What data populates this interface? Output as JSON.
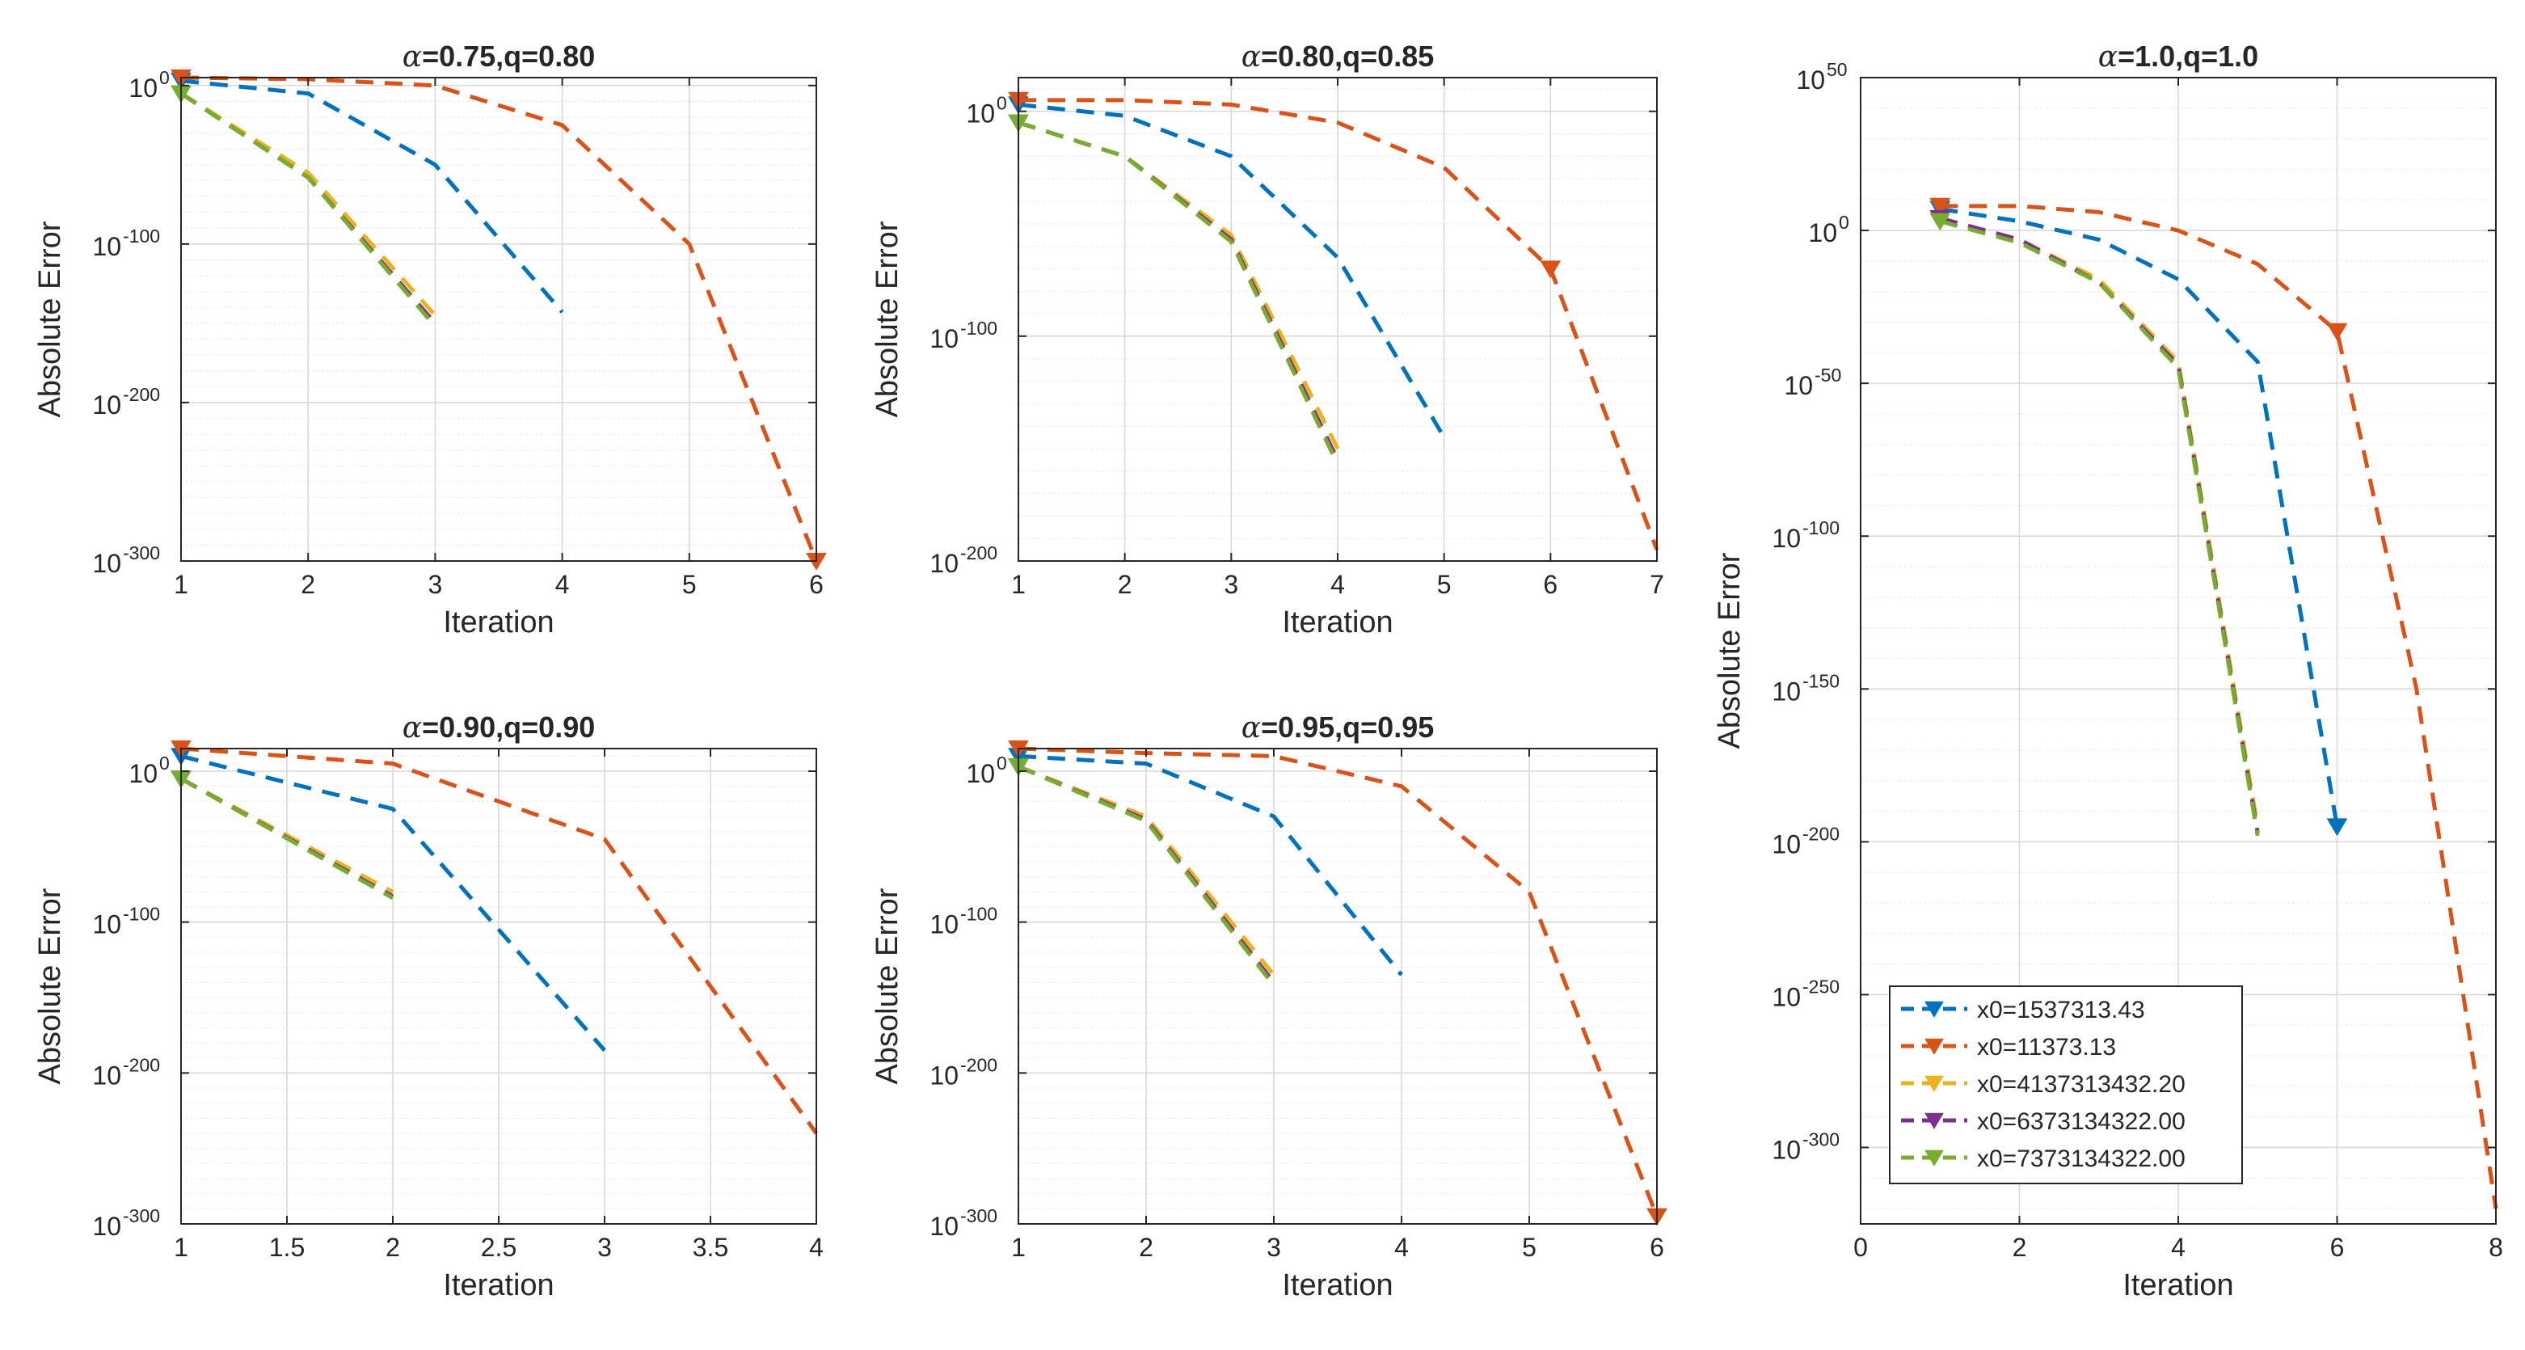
{
  "colors": {
    "s1": "#0072BD",
    "s2": "#D95319",
    "s3": "#EDB120",
    "s4": "#7E2F8E",
    "s5": "#77AC30"
  },
  "legend": {
    "placement": "bottom-left",
    "panel": 5,
    "entries": [
      {
        "key": "s1",
        "label": "x0=1537313.43"
      },
      {
        "key": "s2",
        "label": "x0=11373.13"
      },
      {
        "key": "s3",
        "label": "x0=4137313432.20"
      },
      {
        "key": "s4",
        "label": "x0=6373134322.00"
      },
      {
        "key": "s5",
        "label": "x0=7373134322.00"
      }
    ]
  },
  "chart_data": [
    {
      "type": "line",
      "title_prefix": "α",
      "title_rest": "=0.75,q=0.80",
      "xlabel": "Iteration",
      "ylabel": "Absolute Error",
      "xlim": [
        1,
        6
      ],
      "xticks": [
        "1",
        "2",
        "3",
        "4",
        "5",
        "6"
      ],
      "xtick_values": [
        1,
        2,
        3,
        4,
        5,
        6
      ],
      "yscale": "log",
      "ylim_exp": [
        -300,
        5
      ],
      "yticks_exp": [
        0,
        -100,
        -200,
        -300
      ],
      "minor_step_exp": 10,
      "grid": true,
      "series": [
        {
          "key": "s1",
          "x": [
            1,
            2,
            3,
            4
          ],
          "y_exp": [
            3,
            -5,
            -50,
            -143
          ]
        },
        {
          "key": "s2",
          "x": [
            1,
            2,
            3,
            4,
            5,
            6
          ],
          "y_exp": [
            5,
            4,
            0,
            -25,
            -100,
            -300
          ],
          "marker_last": true
        },
        {
          "key": "s3",
          "x": [
            1,
            2,
            3
          ],
          "y_exp": [
            -5,
            -55,
            -145
          ]
        },
        {
          "key": "s4",
          "x": [
            1,
            2,
            3
          ],
          "y_exp": [
            -5,
            -58,
            -150
          ]
        },
        {
          "key": "s5",
          "x": [
            1,
            2,
            3
          ],
          "y_exp": [
            -5,
            -58,
            -152
          ]
        }
      ]
    },
    {
      "type": "line",
      "title_prefix": "α",
      "title_rest": "=0.80,q=0.85",
      "xlabel": "Iteration",
      "ylabel": "Absolute Error",
      "xlim": [
        1,
        7
      ],
      "xticks": [
        "1",
        "2",
        "3",
        "4",
        "5",
        "6",
        "7"
      ],
      "xtick_values": [
        1,
        2,
        3,
        4,
        5,
        6,
        7
      ],
      "yscale": "log",
      "ylim_exp": [
        -200,
        15
      ],
      "yticks_exp": [
        0,
        -100,
        -200
      ],
      "minor_step_exp": 10,
      "grid": true,
      "series": [
        {
          "key": "s1",
          "x": [
            1,
            2,
            3,
            4,
            5
          ],
          "y_exp": [
            3,
            -2,
            -20,
            -65,
            -145
          ]
        },
        {
          "key": "s2",
          "x": [
            1,
            2,
            3,
            4,
            5,
            6,
            7
          ],
          "y_exp": [
            5,
            5,
            3,
            -5,
            -25,
            -70,
            -195
          ],
          "marker_last": false,
          "marker_at": 5
        },
        {
          "key": "s3",
          "x": [
            1,
            2,
            3,
            4
          ],
          "y_exp": [
            -5,
            -20,
            -55,
            -150
          ]
        },
        {
          "key": "s4",
          "x": [
            1,
            2,
            3,
            4
          ],
          "y_exp": [
            -5,
            -20,
            -57,
            -155
          ]
        },
        {
          "key": "s5",
          "x": [
            1,
            2,
            3,
            4
          ],
          "y_exp": [
            -5,
            -20,
            -58,
            -157
          ]
        }
      ]
    },
    {
      "type": "line",
      "title_prefix": "α",
      "title_rest": "=0.90,q=0.90",
      "xlabel": "Iteration",
      "ylabel": "Absolute Error",
      "xlim": [
        1,
        4
      ],
      "xticks": [
        "1",
        "1.5",
        "2",
        "2.5",
        "3",
        "3.5",
        "4"
      ],
      "xtick_values": [
        1,
        1.5,
        2,
        2.5,
        3,
        3.5,
        4
      ],
      "yscale": "log",
      "ylim_exp": [
        -300,
        15
      ],
      "yticks_exp": [
        0,
        -100,
        -200,
        -300
      ],
      "minor_step_exp": 10,
      "grid": true,
      "series": [
        {
          "key": "s1",
          "x": [
            1,
            2,
            3
          ],
          "y_exp": [
            10,
            -25,
            -185
          ]
        },
        {
          "key": "s2",
          "x": [
            1,
            2,
            3,
            4
          ],
          "y_exp": [
            15,
            5,
            -45,
            -240
          ]
        },
        {
          "key": "s3",
          "x": [
            1,
            2
          ],
          "y_exp": [
            -5,
            -80
          ]
        },
        {
          "key": "s4",
          "x": [
            1,
            2
          ],
          "y_exp": [
            -5,
            -83
          ]
        },
        {
          "key": "s5",
          "x": [
            1,
            2
          ],
          "y_exp": [
            -5,
            -84
          ]
        }
      ]
    },
    {
      "type": "line",
      "title_prefix": "α",
      "title_rest": "=0.95,q=0.95",
      "xlabel": "Iteration",
      "ylabel": "Absolute Error",
      "xlim": [
        1,
        6
      ],
      "xticks": [
        "1",
        "2",
        "3",
        "4",
        "5",
        "6"
      ],
      "xtick_values": [
        1,
        2,
        3,
        4,
        5,
        6
      ],
      "yscale": "log",
      "ylim_exp": [
        -300,
        15
      ],
      "yticks_exp": [
        0,
        -100,
        -200,
        -300
      ],
      "minor_step_exp": 10,
      "grid": true,
      "series": [
        {
          "key": "s1",
          "x": [
            1,
            2,
            3,
            4
          ],
          "y_exp": [
            10,
            5,
            -30,
            -135
          ]
        },
        {
          "key": "s2",
          "x": [
            1,
            2,
            3,
            4,
            5,
            6
          ],
          "y_exp": [
            15,
            12,
            10,
            -10,
            -80,
            -295
          ],
          "marker_last": true
        },
        {
          "key": "s3",
          "x": [
            1,
            2,
            3
          ],
          "y_exp": [
            3,
            -30,
            -135
          ]
        },
        {
          "key": "s4",
          "x": [
            1,
            2,
            3
          ],
          "y_exp": [
            3,
            -32,
            -140
          ]
        },
        {
          "key": "s5",
          "x": [
            1,
            2,
            3
          ],
          "y_exp": [
            3,
            -33,
            -142
          ]
        }
      ]
    },
    {
      "type": "line",
      "title_prefix": "α",
      "title_rest": "=1.0,q=1.0",
      "xlabel": "Iteration",
      "ylabel": "Absolute Error",
      "xlim": [
        0,
        8
      ],
      "xticks": [
        "0",
        "2",
        "4",
        "6",
        "8"
      ],
      "xtick_values": [
        0,
        2,
        4,
        6,
        8
      ],
      "yscale": "log",
      "ylim_exp": [
        -325,
        50
      ],
      "yticks_exp": [
        50,
        0,
        -50,
        -100,
        -150,
        -200,
        -250,
        -300
      ],
      "minor_step_exp": 10,
      "grid": true,
      "series": [
        {
          "key": "s1",
          "x": [
            1,
            2,
            3,
            4,
            5,
            6
          ],
          "y_exp": [
            7,
            3,
            -3,
            -16,
            -43,
            -195
          ],
          "marker_last": true
        },
        {
          "key": "s2",
          "x": [
            1,
            2,
            3,
            4,
            5,
            6,
            7,
            8
          ],
          "y_exp": [
            8,
            8,
            6,
            0,
            -11,
            -33,
            -150,
            -320
          ],
          "marker_at": 5
        },
        {
          "key": "s3",
          "x": [
            1,
            2,
            3,
            4,
            5
          ],
          "y_exp": [
            4,
            -3,
            -16,
            -43,
            -195
          ]
        },
        {
          "key": "s4",
          "x": [
            1,
            2,
            3,
            4,
            5
          ],
          "y_exp": [
            4,
            -3,
            -17,
            -44,
            -197
          ]
        },
        {
          "key": "s5",
          "x": [
            1,
            2,
            3,
            4,
            5
          ],
          "y_exp": [
            3,
            -4,
            -17,
            -45,
            -198
          ]
        }
      ]
    }
  ]
}
